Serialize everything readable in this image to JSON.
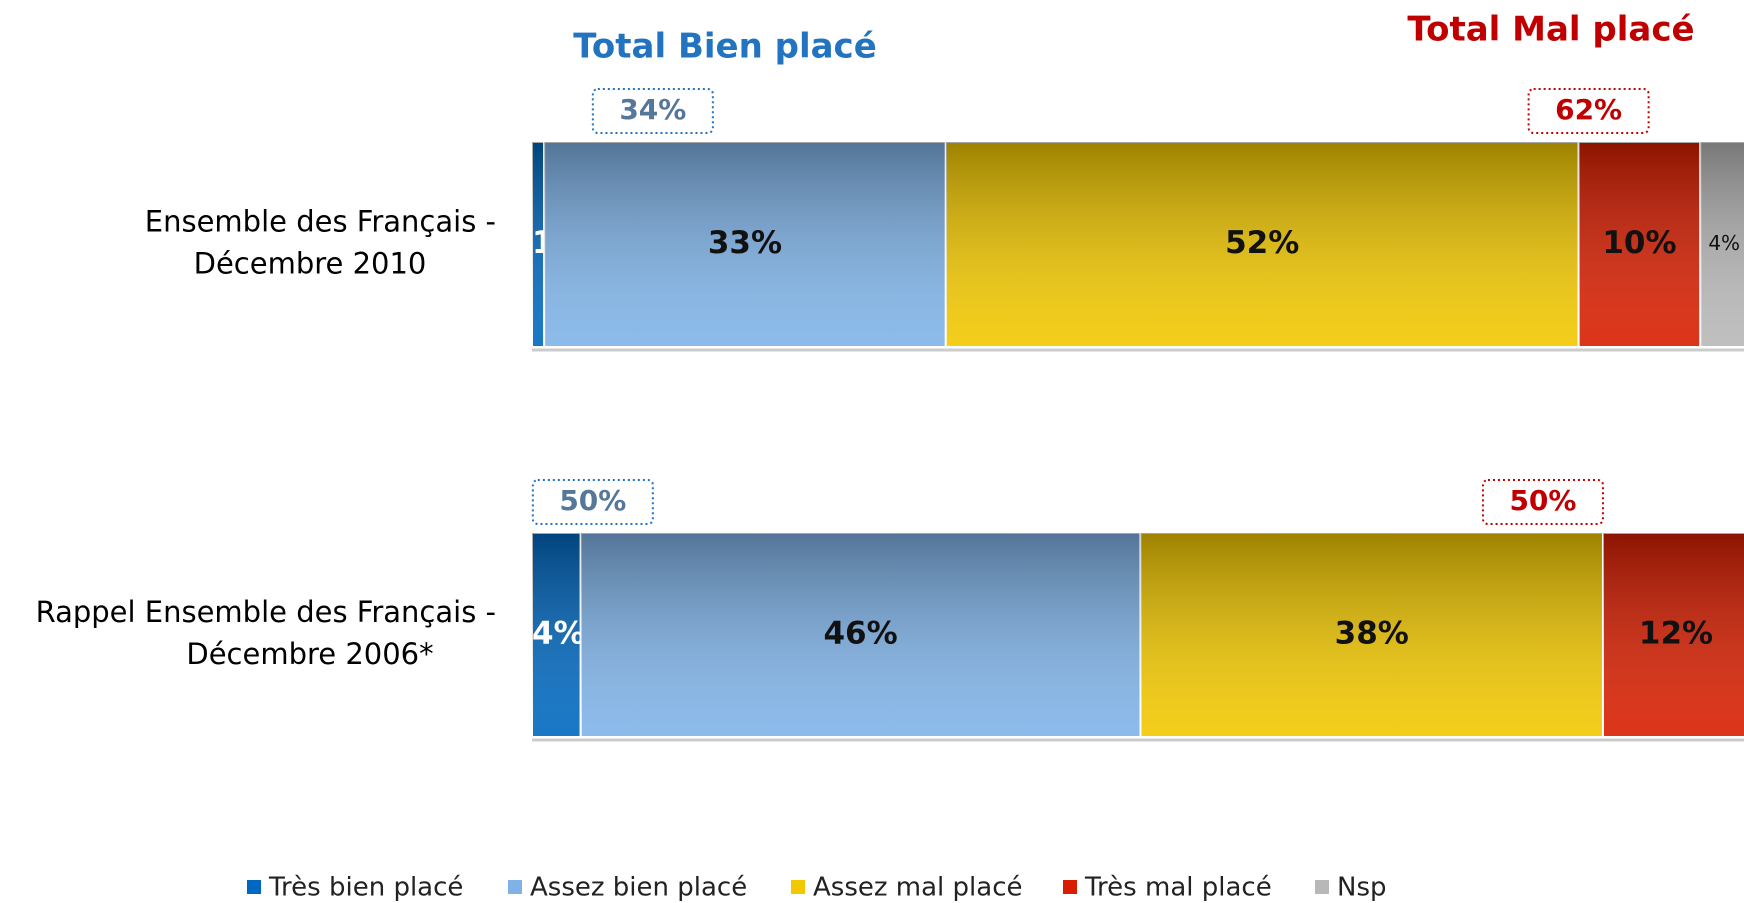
{
  "chart_data": {
    "type": "stacked-bar-horizontal",
    "categories": [
      [
        "Ensemble des Français -",
        "Décembre 2010"
      ],
      [
        "Rappel Ensemble des Français -",
        "Décembre 2006*"
      ]
    ],
    "series": [
      {
        "name": "Très bien placé",
        "color": "#0068c0",
        "values": [
          1,
          4
        ],
        "value_labels": [
          "1%",
          "4%"
        ]
      },
      {
        "name": "Assez bien placé",
        "color": "#7fb3e8",
        "values": [
          33,
          46
        ],
        "value_labels": [
          "33%",
          "46%"
        ]
      },
      {
        "name": "Assez mal placé",
        "color": "#f2c800",
        "values": [
          52,
          38
        ],
        "value_labels": [
          "52%",
          "38%"
        ]
      },
      {
        "name": "Très mal placé",
        "color": "#d81e00",
        "values": [
          10,
          12
        ],
        "value_labels": [
          "10%",
          "12%"
        ]
      },
      {
        "name": "Nsp",
        "color": "#b8b8b8",
        "values": [
          4,
          null
        ],
        "value_labels": [
          "4%",
          null
        ]
      }
    ],
    "xlim": [
      0,
      100
    ],
    "totals": [
      {
        "name": "Total Bien placé",
        "color": "#2273c0",
        "values": [
          34,
          50
        ],
        "value_labels": [
          "34%",
          "50%"
        ]
      },
      {
        "name": "Total Mal placé",
        "color": "#c00000",
        "values": [
          62,
          50
        ],
        "value_labels": [
          "62%",
          "50%"
        ]
      }
    ]
  }
}
